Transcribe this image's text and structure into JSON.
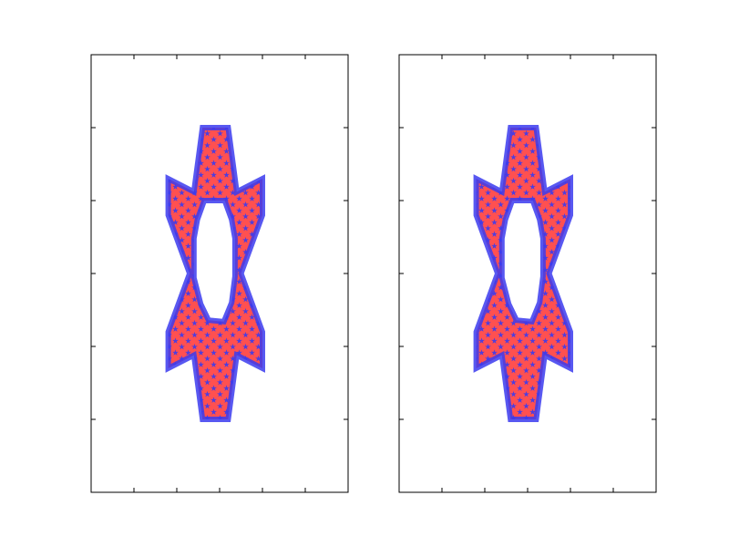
{
  "chart_data": [
    {
      "type": "other",
      "xlim": [
        -1,
        2
      ],
      "ylim": [
        -1,
        2
      ],
      "x_ticks": [
        -0.5,
        0,
        0.5,
        1,
        1.5
      ],
      "y_ticks": [
        -0.5,
        0,
        0.5,
        1,
        1.5
      ],
      "tick_labels_visible": false,
      "grid": false,
      "shape": {
        "kind": "star-with-hole",
        "outer_vertices": [
          [
            0.3,
            1.5
          ],
          [
            0.6,
            1.5
          ],
          [
            0.7,
            1.06
          ],
          [
            1.0,
            1.15
          ],
          [
            1.0,
            0.9
          ],
          [
            0.75,
            0.5
          ],
          [
            1.0,
            0.1
          ],
          [
            1.0,
            -0.15
          ],
          [
            0.7,
            -0.06
          ],
          [
            0.6,
            -0.5
          ],
          [
            0.3,
            -0.5
          ],
          [
            0.2,
            -0.06
          ],
          [
            -0.1,
            -0.15
          ],
          [
            -0.1,
            0.1
          ],
          [
            0.15,
            0.5
          ],
          [
            -0.1,
            0.9
          ],
          [
            -0.1,
            1.15
          ],
          [
            0.2,
            1.06
          ]
        ],
        "hole_vertices": [
          [
            0.32,
            1.0
          ],
          [
            0.56,
            1.0
          ],
          [
            0.64,
            0.87
          ],
          [
            0.68,
            0.74
          ],
          [
            0.68,
            0.48
          ],
          [
            0.64,
            0.3
          ],
          [
            0.55,
            0.17
          ],
          [
            0.37,
            0.18
          ],
          [
            0.28,
            0.29
          ],
          [
            0.2,
            0.47
          ],
          [
            0.2,
            0.74
          ],
          [
            0.24,
            0.87
          ]
        ],
        "facecolor": "#ff5050",
        "edgecolor": "#3b3bee",
        "hatch": "stars",
        "hatch_color": "#3b3bee"
      }
    },
    {
      "type": "other",
      "xlim": [
        -1,
        2
      ],
      "ylim": [
        -1,
        2
      ],
      "x_ticks": [
        -0.5,
        0,
        0.5,
        1,
        1.5
      ],
      "y_ticks": [
        -0.5,
        0,
        0.5,
        1,
        1.5
      ],
      "tick_labels_visible": false,
      "grid": false,
      "shape": {
        "kind": "star-with-hole",
        "outer_vertices": [
          [
            0.3,
            1.5
          ],
          [
            0.6,
            1.5
          ],
          [
            0.7,
            1.06
          ],
          [
            1.0,
            1.15
          ],
          [
            1.0,
            0.9
          ],
          [
            0.75,
            0.5
          ],
          [
            1.0,
            0.1
          ],
          [
            1.0,
            -0.15
          ],
          [
            0.7,
            -0.06
          ],
          [
            0.6,
            -0.5
          ],
          [
            0.3,
            -0.5
          ],
          [
            0.2,
            -0.06
          ],
          [
            -0.1,
            -0.15
          ],
          [
            -0.1,
            0.1
          ],
          [
            0.15,
            0.5
          ],
          [
            -0.1,
            0.9
          ],
          [
            -0.1,
            1.15
          ],
          [
            0.2,
            1.06
          ]
        ],
        "hole_vertices": [
          [
            0.32,
            1.0
          ],
          [
            0.56,
            1.0
          ],
          [
            0.64,
            0.87
          ],
          [
            0.68,
            0.74
          ],
          [
            0.68,
            0.48
          ],
          [
            0.64,
            0.3
          ],
          [
            0.55,
            0.17
          ],
          [
            0.37,
            0.18
          ],
          [
            0.28,
            0.29
          ],
          [
            0.2,
            0.47
          ],
          [
            0.2,
            0.74
          ],
          [
            0.24,
            0.87
          ]
        ],
        "facecolor": "#ff5050",
        "edgecolor": "#3b3bee",
        "hatch": "stars",
        "hatch_color": "#3b3bee"
      }
    }
  ]
}
